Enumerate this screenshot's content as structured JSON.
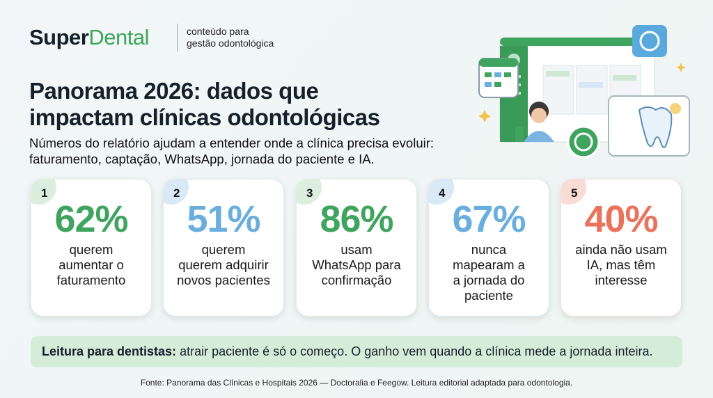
{
  "brand": {
    "name_a": "Super",
    "name_b": "Dental",
    "tagline": [
      "conteúdo para",
      "gestão odontológica"
    ]
  },
  "title": [
    "Panorama 2026: dados que",
    "impactam clínicas odontológicas"
  ],
  "subtitle": [
    "Números do relatório ajudam a entender onde a clínica precisa evoluir:",
    "faturamento, captação, WhatsApp, jornada do paciente e IA."
  ],
  "cards": [
    {
      "number": "1",
      "value": "62%",
      "lines": [
        "querem",
        "aumentar o",
        "faturamento"
      ],
      "color": "#3fa45e",
      "tint": "#dcefdf"
    },
    {
      "number": "2",
      "value": "51%",
      "lines": [
        "querem",
        "querem adquirir",
        "novos pacientes"
      ],
      "color": "#6aaedd",
      "tint": "#d9e9f6"
    },
    {
      "number": "3",
      "value": "86%",
      "lines": [
        "usam",
        "WhatsApp para",
        "confirmação"
      ],
      "color": "#3fa45e",
      "tint": "#dcefdf"
    },
    {
      "number": "4",
      "value": "67%",
      "lines": [
        "nunca",
        "mapearam a",
        "a jornada do",
        "paciente"
      ],
      "color": "#6aaedd",
      "tint": "#d9e9f6"
    },
    {
      "number": "5",
      "value": "40%",
      "lines": [
        "ainda não usam",
        "IA, mas têm",
        "interesse"
      ],
      "color": "#e9735c",
      "tint": "#f8dcd5"
    }
  ],
  "callout": {
    "lead": "Leitura para dentistas:",
    "text": " atrair paciente é só o começo. O ganho vem quando a clínica mede a jornada inteira."
  },
  "footer": "Fonte: Panorama das Clínicas e Hospitais 2026 — Doctoralia e Feegow. Leitura editorial adaptada para odontologia."
}
